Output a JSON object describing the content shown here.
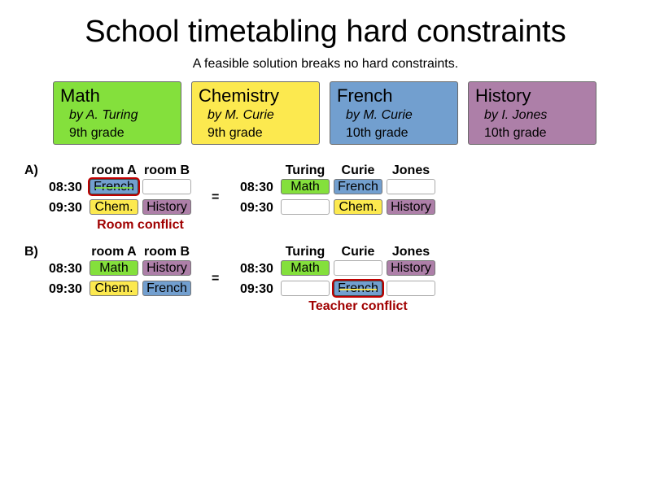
{
  "header": {
    "title": "School timetabling hard constraints",
    "subtitle": "A feasible solution breaks no hard constraints."
  },
  "colors": {
    "math": "#84e03c",
    "chemistry": "#fce94f",
    "french": "#729fcf",
    "history": "#ad7fa8",
    "conflict": "#a00000"
  },
  "lessons": [
    {
      "name": "Math",
      "teacher": "by  A. Turing",
      "grade": "9th grade"
    },
    {
      "name": "Chemistry",
      "teacher": "by  M. Curie",
      "grade": "9th grade"
    },
    {
      "name": "French",
      "teacher": "by  M. Curie",
      "grade": "10th grade"
    },
    {
      "name": "History",
      "teacher": "by  I. Jones",
      "grade": "10th grade"
    }
  ],
  "examples": [
    {
      "label": "A)",
      "rooms": [
        "room A",
        "room B"
      ],
      "teachers": [
        "Turing",
        "Curie",
        "Jones"
      ],
      "times": [
        "08:30",
        "09:30"
      ],
      "equals": "=",
      "room_cells": [
        [
          "French",
          ""
        ],
        [
          "Chem.",
          "History"
        ]
      ],
      "teacher_cells": [
        [
          "Math",
          "French",
          ""
        ],
        [
          "",
          "Chem.",
          "History"
        ]
      ],
      "conflict_label": "Room conflict"
    },
    {
      "label": "B)",
      "rooms": [
        "room A",
        "room B"
      ],
      "teachers": [
        "Turing",
        "Curie",
        "Jones"
      ],
      "times": [
        "08:30",
        "09:30"
      ],
      "equals": "=",
      "room_cells": [
        [
          "Math",
          "History"
        ],
        [
          "Chem.",
          "French"
        ]
      ],
      "teacher_cells": [
        [
          "Math",
          "",
          "History"
        ],
        [
          "",
          "French",
          ""
        ]
      ],
      "conflict_label": "Teacher conflict"
    }
  ]
}
